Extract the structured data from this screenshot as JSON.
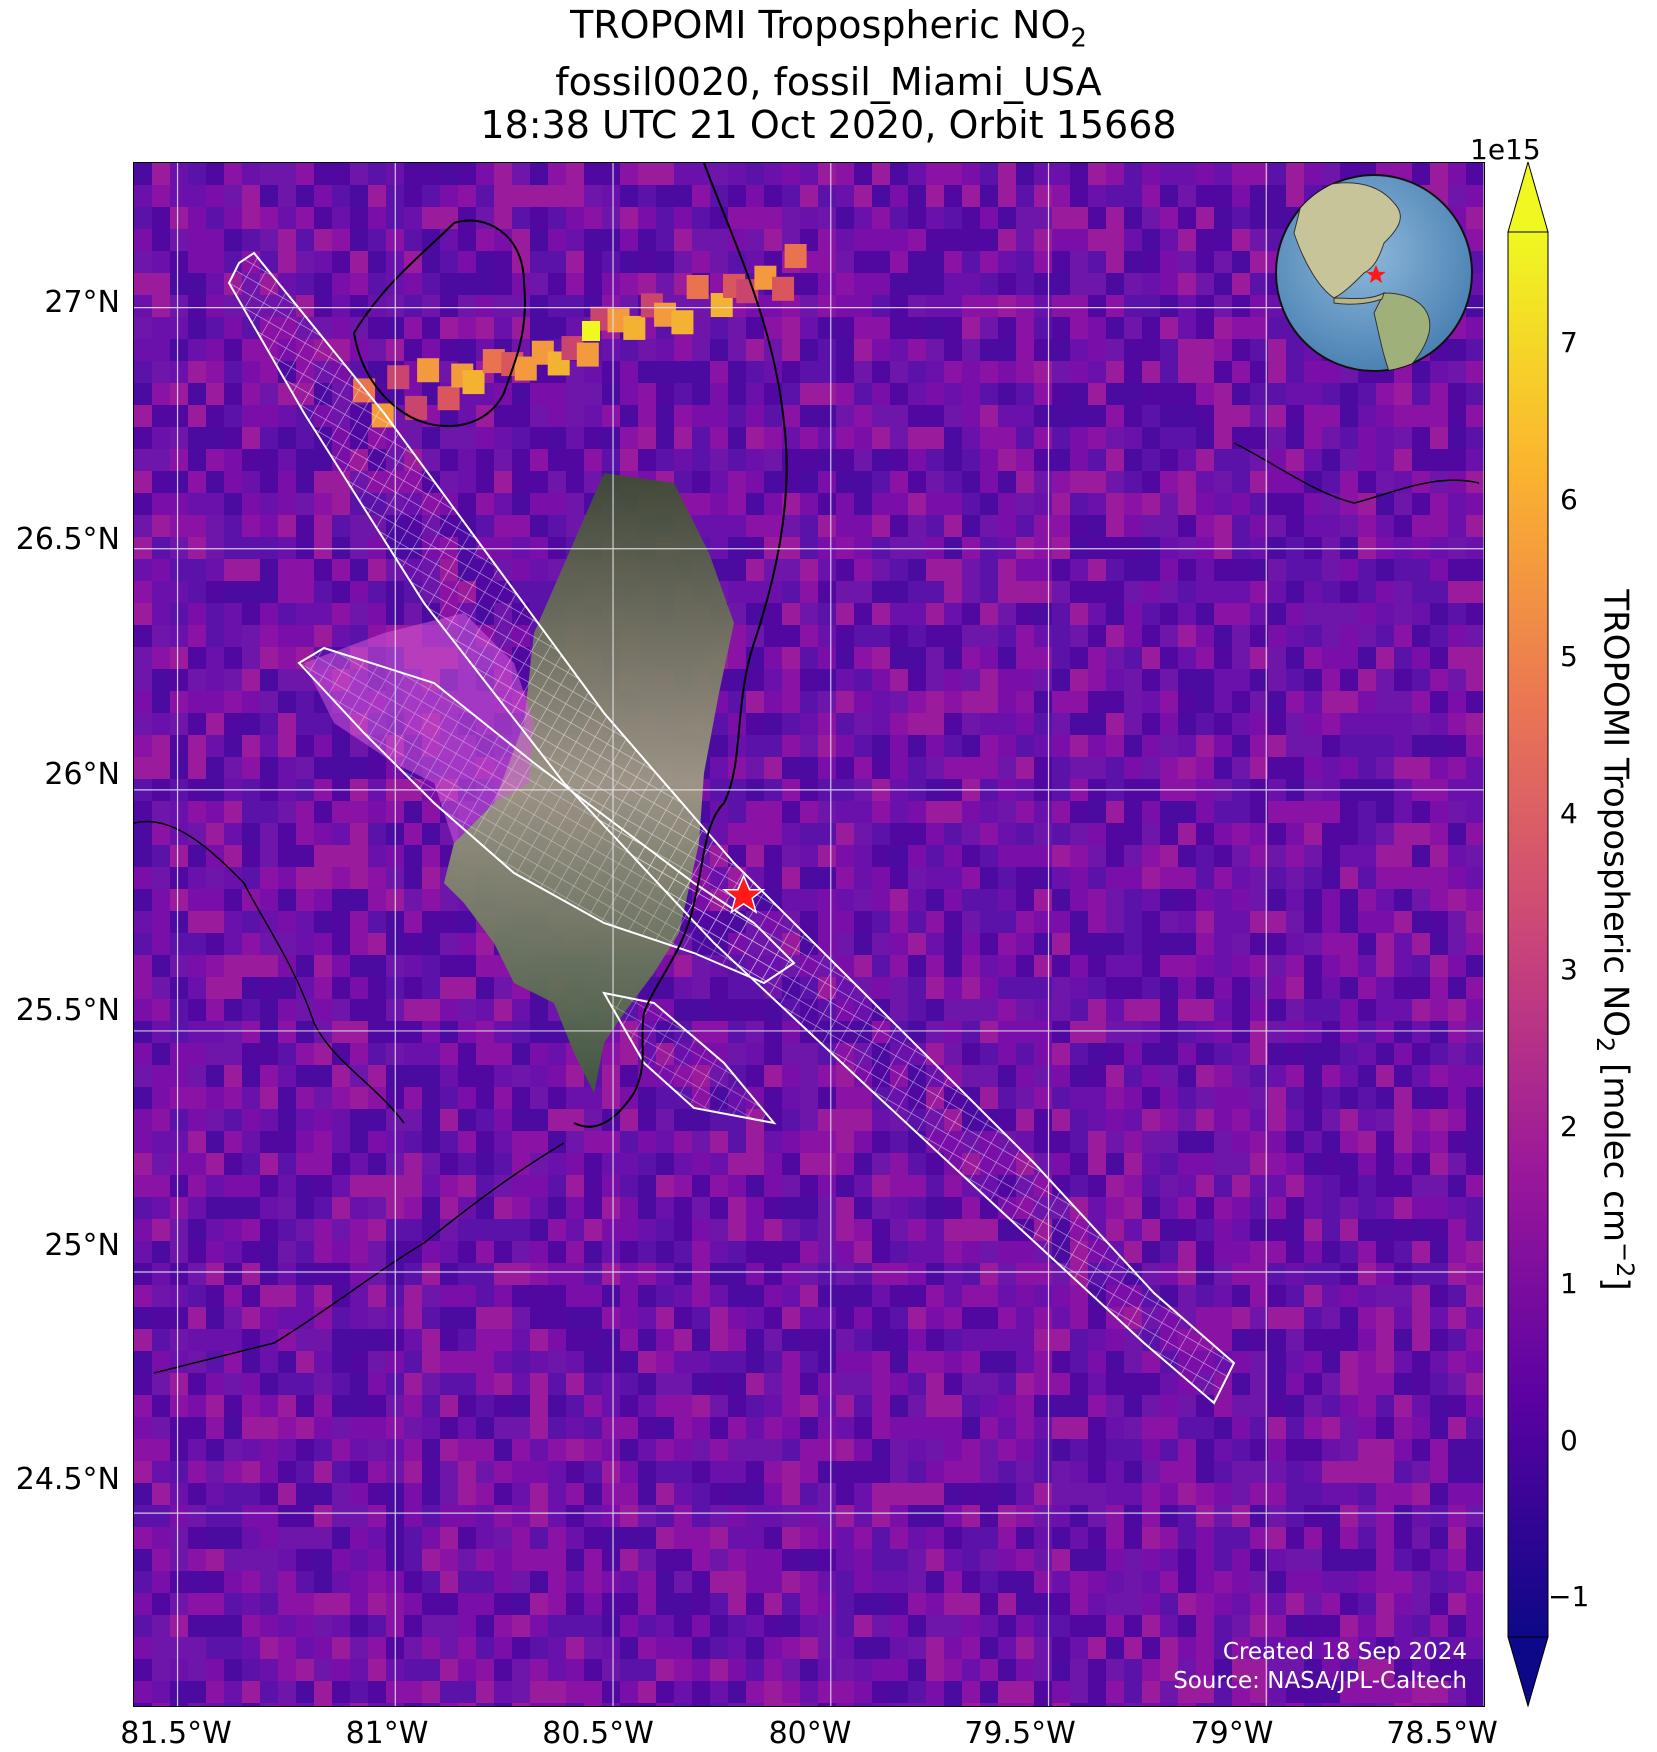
{
  "title": {
    "line1_main": "TROPOMI Tropospheric NO",
    "line1_sub": "2",
    "line2": "fossil0020, fossil_Miami_USA",
    "line3": "18:38 UTC 21 Oct 2020, Orbit 15668"
  },
  "map": {
    "lon_range": [
      -81.6,
      -78.5
    ],
    "lat_range": [
      24.1,
      27.3
    ],
    "lat_ticks": [
      "27°N",
      "26.5°N",
      "26°N",
      "25.5°N",
      "25°N",
      "24.5°N"
    ],
    "lon_ticks": [
      "81.5°W",
      "81°W",
      "80.5°W",
      "80°W",
      "79.5°W",
      "79°W",
      "78.5°W"
    ],
    "gridlines": true,
    "target_marker": "red-star",
    "inset": "globe-western-hemisphere"
  },
  "credit": {
    "line1": "Created 18 Sep 2024",
    "line2": "Source: NASA/JPL-Caltech"
  },
  "colorbar": {
    "exponent": "1e15",
    "ticks": [
      "7",
      "6",
      "5",
      "4",
      "3",
      "2",
      "1",
      "0",
      "−1"
    ],
    "label_main": "TROPOMI Tropospheric NO",
    "label_sub": "2",
    "label_units": " [molec cm",
    "label_sup": "−2",
    "label_end": "]",
    "range": [
      -1.3,
      7.6
    ],
    "colormap": "plasma",
    "colors": [
      "#0d0887",
      "#5b02a3",
      "#9a179b",
      "#cb4678",
      "#eb7852",
      "#fbb32f",
      "#eff821"
    ]
  },
  "chart_data": {
    "type": "heatmap",
    "title": "TROPOMI Tropospheric NO2 fossil0020, fossil_Miami_USA 18:38 UTC 21 Oct 2020, Orbit 15668",
    "xlabel": "",
    "ylabel": "",
    "colorbar_label": "TROPOMI Tropospheric NO2 [molec cm-2]",
    "colorbar_exponent": "1e15",
    "xlim": [
      -81.6,
      -78.5
    ],
    "ylim": [
      24.1,
      27.3
    ],
    "target": {
      "lon": -80.2,
      "lat": 25.78
    }
  }
}
